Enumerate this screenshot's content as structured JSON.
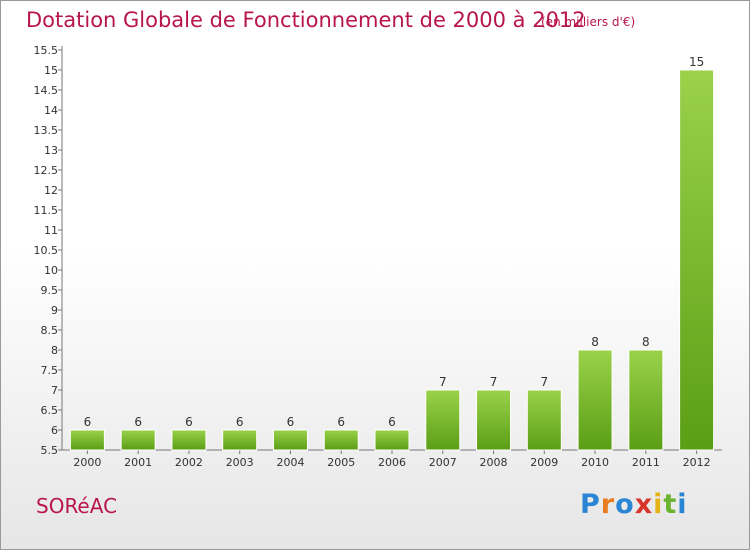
{
  "chart_data": {
    "type": "bar",
    "title": "Dotation Globale de Fonctionnement de 2000 à 2012",
    "unit_label": "(en milliers d'€)",
    "categories": [
      "2000",
      "2001",
      "2002",
      "2003",
      "2004",
      "2005",
      "2006",
      "2007",
      "2008",
      "2009",
      "2010",
      "2011",
      "2012"
    ],
    "values": [
      6,
      6,
      6,
      6,
      6,
      6,
      6,
      7,
      7,
      7,
      8,
      8,
      15
    ],
    "data_labels": [
      "6",
      "6",
      "6",
      "6",
      "6",
      "6",
      "6",
      "7",
      "7",
      "7",
      "8",
      "8",
      "15"
    ],
    "ylim": [
      5.5,
      15.5
    ],
    "yticks": [
      "5.5",
      "6",
      "6.5",
      "7",
      "7.5",
      "8",
      "8.5",
      "9",
      "9.5",
      "10",
      "10.5",
      "11",
      "11.5",
      "12",
      "12.5",
      "13",
      "13.5",
      "14",
      "14.5",
      "15",
      "15.5"
    ],
    "grid": false,
    "bar_color_top": "#9ad24a",
    "bar_color_bottom": "#5a9e15"
  },
  "commune": "SORéAC",
  "logo": {
    "text": "Proxiti",
    "letter_colors": [
      "#2a86d4",
      "#e87d1e",
      "#2a86d4",
      "#d9342b",
      "#e6b21a",
      "#6ab32e",
      "#2a86d4"
    ]
  }
}
